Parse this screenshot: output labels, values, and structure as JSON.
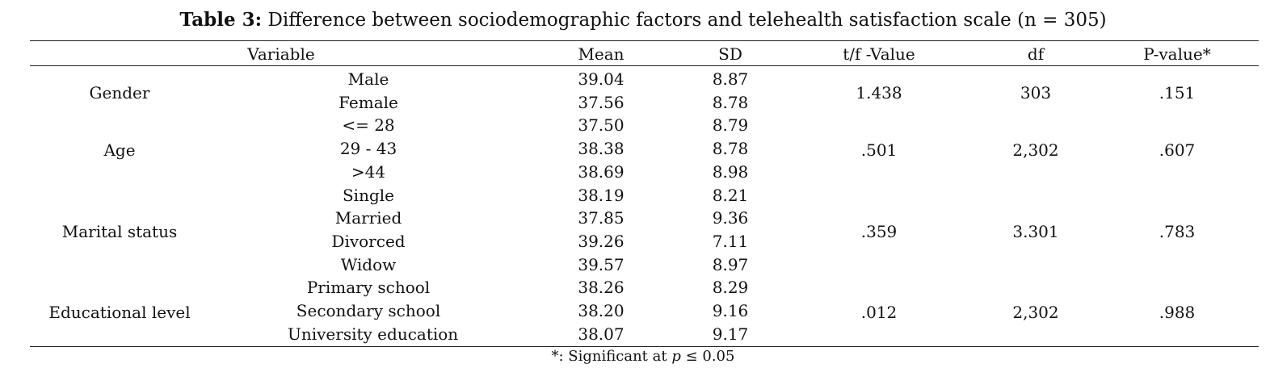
{
  "table": {
    "caption_label": "Table 3:",
    "caption_text": "Difference between sociodemographic factors and telehealth satisfaction scale (n = 305)",
    "headers": [
      "Variable",
      "Mean",
      "SD",
      "t/f -Value",
      "df",
      "P-value*"
    ],
    "groups": [
      {
        "variable": "Gender",
        "stat": "1.438",
        "df": "303",
        "p": ".151",
        "rows": [
          {
            "level": "Male",
            "mean": "39.04",
            "sd": "8.87"
          },
          {
            "level": "Female",
            "mean": "37.56",
            "sd": "8.78"
          }
        ]
      },
      {
        "variable": "Age",
        "stat": ".501",
        "df": "2,302",
        "p": ".607",
        "rows": [
          {
            "level": "<= 28",
            "mean": "37.50",
            "sd": "8.79"
          },
          {
            "level": "29 - 43",
            "mean": "38.38",
            "sd": "8.78"
          },
          {
            "level": ">44",
            "mean": "38.69",
            "sd": "8.98"
          }
        ]
      },
      {
        "variable": "Marital status",
        "stat": ".359",
        "df": "3.301",
        "p": ".783",
        "rows": [
          {
            "level": "Single",
            "mean": "38.19",
            "sd": "8.21"
          },
          {
            "level": "Married",
            "mean": "37.85",
            "sd": "9.36"
          },
          {
            "level": "Divorced",
            "mean": "39.26",
            "sd": "7.11"
          },
          {
            "level": "Widow",
            "mean": "39.57",
            "sd": "8.97"
          }
        ]
      },
      {
        "variable": "Educational level",
        "stat": ".012",
        "df": "2,302",
        "p": ".988",
        "rows": [
          {
            "level": "Primary school",
            "mean": "38.26",
            "sd": "8.29"
          },
          {
            "level": "Secondary school",
            "mean": "38.20",
            "sd": "9.16"
          },
          {
            "level": "University education",
            "mean": "38.07",
            "sd": "9.17"
          }
        ]
      }
    ],
    "footnote_prefix": "*: Significant at ",
    "footnote_var": "p",
    "footnote_suffix": " ≤ 0.05"
  }
}
